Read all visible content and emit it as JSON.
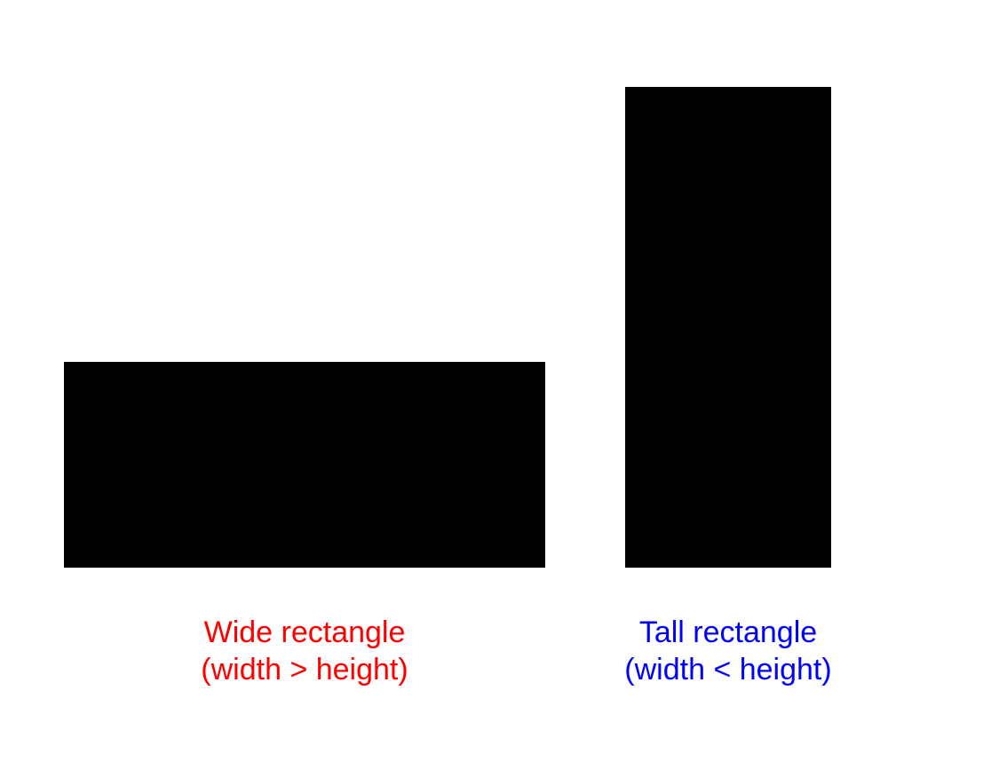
{
  "shapes": [
    {
      "id": "wide",
      "fill": "#000000",
      "caption_line1": "Wide rectangle",
      "caption_line2": "(width > height)",
      "caption_color": "#ff0000"
    },
    {
      "id": "tall",
      "fill": "#000000",
      "caption_line1": "Tall rectangle",
      "caption_line2": "(width < height)",
      "caption_color": "#0000ff"
    }
  ]
}
